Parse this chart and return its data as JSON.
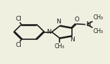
{
  "bg_color": "#f0f0e0",
  "line_color": "#1a1a1a",
  "text_color": "#1a1a1a",
  "lw": 1.2,
  "dbo": 0.013,
  "fs": 6.5,
  "fs_small": 5.8
}
